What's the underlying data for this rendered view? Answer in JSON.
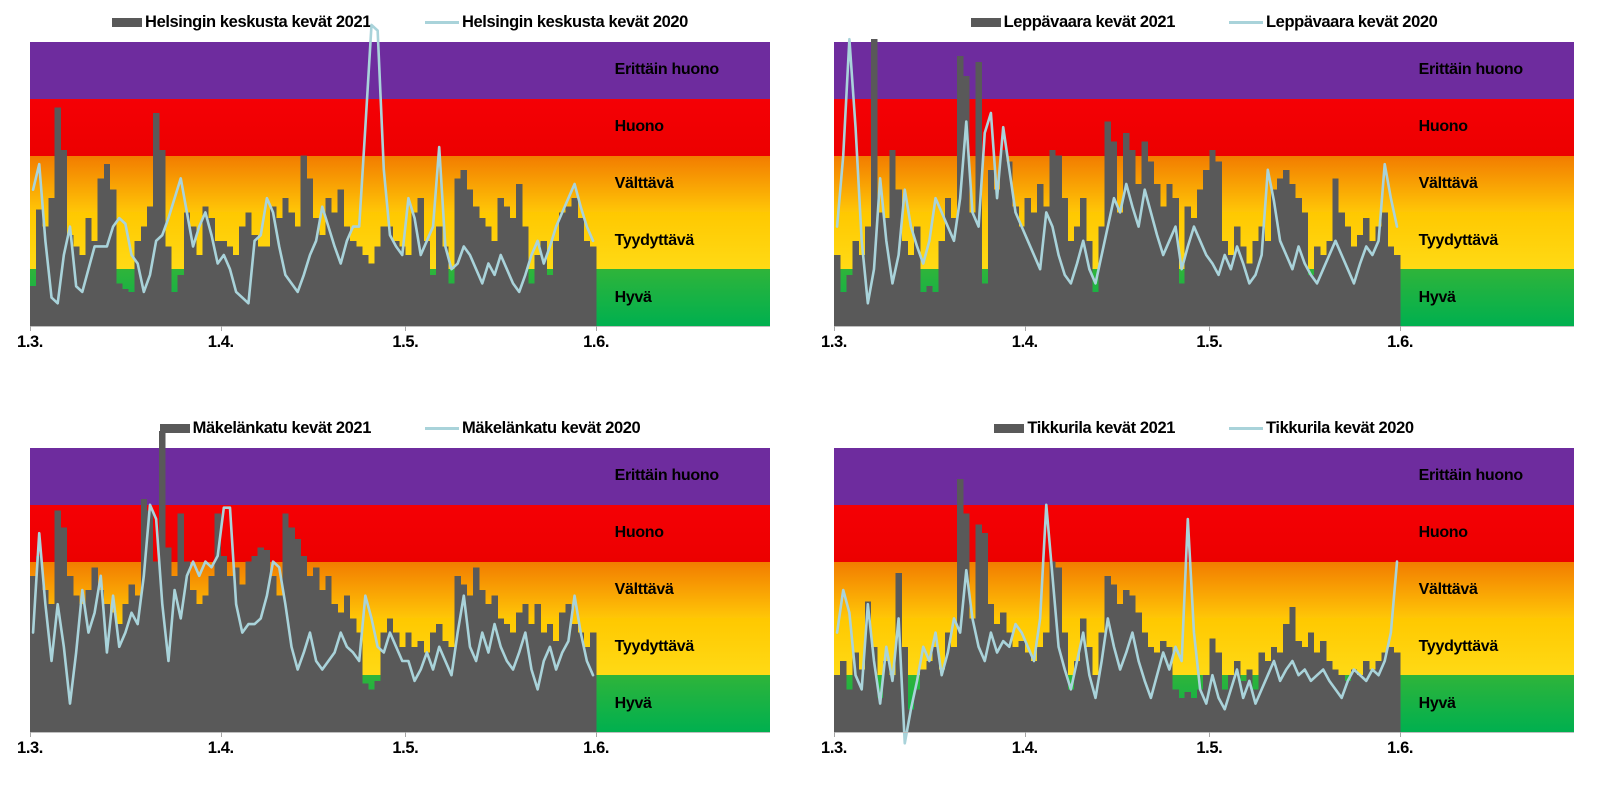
{
  "page": {
    "background": "#FFFFFF"
  },
  "colors": {
    "bar": "#595959",
    "line": "#A9D3DA",
    "axis_line": "#BFBFBF",
    "tick": "#A6A6A6",
    "text": "#000000"
  },
  "bands": [
    {
      "key": "erittain-huono",
      "label": "Erittäin huono",
      "color_top": "#6E2C9E",
      "color_bottom": "#6E2C9E"
    },
    {
      "key": "huono",
      "label": "Huono",
      "color_top": "#F50005",
      "color_bottom": "#EC0000"
    },
    {
      "key": "valttava",
      "label": "Välttävä",
      "color_top": "#F27C00",
      "color_bottom": "#FFC607"
    },
    {
      "key": "tyydyttava",
      "label": "Tyydyttävä",
      "color_top": "#FFC800",
      "color_bottom": "#FFDA15"
    },
    {
      "key": "hyva",
      "label": "Hyvä",
      "color_top": "#2FB43A",
      "color_bottom": "#00B04F"
    }
  ],
  "x_ticks": [
    {
      "label": "1.3.",
      "day": 0
    },
    {
      "label": "1.4.",
      "day": 31
    },
    {
      "label": "1.5.",
      "day": 61
    },
    {
      "label": "1.6.",
      "day": 92
    }
  ],
  "chart_data": [
    {
      "type": "bar",
      "location": "Helsingin keskusta",
      "x_range": "daily values 1.3.–31.5. (92 days), ticks at 1.3., 1.4., 1.5., 1.6.",
      "y_scale": "air quality index, 0–100; bands of 20: 0–20 Hyvä, 20–40 Tyydyttävä, 40–60 Välttävä, 60–80 Huono, 80–100 Erittäin huono",
      "legend_position": "top",
      "grid": false,
      "series": [
        {
          "name": "Helsingin keskusta kevät 2021",
          "type": "bar",
          "values": [
            14,
            41,
            35,
            45,
            77,
            62,
            32,
            28,
            25,
            38,
            30,
            52,
            57,
            48,
            15,
            13,
            12,
            30,
            35,
            42,
            75,
            62,
            28,
            12,
            18,
            40,
            35,
            25,
            42,
            38,
            30,
            30,
            28,
            25,
            35,
            40,
            32,
            28,
            28,
            42,
            38,
            45,
            40,
            35,
            60,
            52,
            38,
            32,
            45,
            40,
            48,
            35,
            30,
            28,
            25,
            22,
            28,
            35,
            35,
            30,
            28,
            25,
            40,
            45,
            30,
            18,
            35,
            28,
            15,
            52,
            55,
            48,
            42,
            38,
            35,
            30,
            45,
            42,
            38,
            50,
            35,
            15,
            25,
            30,
            18,
            30,
            40,
            42,
            45,
            38,
            30,
            28
          ]
        },
        {
          "name": "Helsingin keskusta kevät 2020",
          "type": "line",
          "values": [
            48,
            57,
            30,
            10,
            8,
            25,
            35,
            14,
            12,
            20,
            28,
            28,
            28,
            35,
            38,
            36,
            25,
            22,
            12,
            18,
            30,
            32,
            38,
            45,
            52,
            40,
            28,
            35,
            40,
            32,
            22,
            25,
            20,
            12,
            10,
            8,
            30,
            32,
            45,
            40,
            28,
            18,
            15,
            12,
            18,
            25,
            30,
            42,
            35,
            28,
            22,
            30,
            35,
            35,
            70,
            106,
            104,
            55,
            32,
            28,
            25,
            45,
            38,
            25,
            30,
            35,
            63,
            28,
            20,
            22,
            28,
            25,
            20,
            15,
            22,
            18,
            25,
            20,
            15,
            12,
            18,
            25,
            30,
            22,
            28,
            35,
            40,
            45,
            50,
            42,
            35,
            30
          ]
        }
      ]
    },
    {
      "type": "bar",
      "location": "Leppävaara",
      "x_range": "daily values 1.3.–31.5. (92 days), ticks at 1.3., 1.4., 1.5., 1.6.",
      "y_scale": "air quality index, 0–100; bands of 20: 0–20 Hyvä, 20–40 Tyydyttävä, 40–60 Välttävä, 60–80 Huono, 80–100 Erittäin huono",
      "legend_position": "top",
      "grid": false,
      "series": [
        {
          "name": "Leppävaara kevät 2021",
          "type": "bar",
          "values": [
            25,
            12,
            18,
            30,
            25,
            35,
            101,
            40,
            38,
            62,
            48,
            30,
            25,
            35,
            12,
            14,
            12,
            30,
            45,
            38,
            95,
            88,
            40,
            93,
            15,
            55,
            48,
            62,
            58,
            42,
            35,
            45,
            40,
            50,
            42,
            62,
            60,
            45,
            30,
            35,
            45,
            30,
            12,
            35,
            72,
            65,
            40,
            68,
            62,
            50,
            65,
            58,
            50,
            42,
            50,
            45,
            15,
            42,
            38,
            48,
            55,
            62,
            58,
            30,
            25,
            35,
            28,
            22,
            30,
            35,
            30,
            48,
            52,
            55,
            50,
            45,
            40,
            18,
            28,
            25,
            30,
            52,
            40,
            35,
            28,
            32,
            38,
            30,
            35,
            40,
            28,
            25
          ]
        },
        {
          "name": "Leppävaara kevät 2020",
          "type": "line",
          "values": [
            35,
            60,
            101,
            70,
            30,
            8,
            20,
            52,
            30,
            15,
            25,
            48,
            35,
            28,
            22,
            30,
            45,
            40,
            35,
            30,
            45,
            72,
            40,
            35,
            68,
            75,
            45,
            70,
            55,
            40,
            35,
            30,
            25,
            20,
            40,
            35,
            25,
            18,
            15,
            22,
            30,
            20,
            15,
            25,
            35,
            45,
            40,
            50,
            42,
            35,
            48,
            40,
            32,
            25,
            30,
            35,
            20,
            28,
            35,
            30,
            25,
            22,
            18,
            25,
            20,
            28,
            22,
            15,
            18,
            25,
            55,
            44,
            30,
            25,
            20,
            28,
            22,
            18,
            15,
            20,
            25,
            30,
            25,
            20,
            15,
            22,
            28,
            25,
            30,
            57,
            45,
            35
          ]
        }
      ]
    },
    {
      "type": "bar",
      "location": "Mäkelänkatu",
      "x_range": "daily values 1.3.–31.5. (92 days), ticks at 1.3., 1.4., 1.5., 1.6.",
      "y_scale": "air quality index, 0–100; bands of 20: 0–20 Hyvä, 20–40 Tyydyttävä, 40–60 Välttävä, 60–80 Huono, 80–100 Erittäin huono",
      "legend_position": "top",
      "grid": false,
      "series": [
        {
          "name": "Mäkelänkatu kevät 2021",
          "type": "bar",
          "values": [
            55,
            62,
            50,
            45,
            78,
            72,
            55,
            48,
            45,
            50,
            58,
            50,
            45,
            42,
            38,
            45,
            52,
            48,
            82,
            78,
            60,
            106,
            65,
            55,
            77,
            60,
            50,
            45,
            48,
            55,
            77,
            62,
            55,
            58,
            52,
            60,
            62,
            65,
            64,
            55,
            48,
            77,
            72,
            68,
            62,
            55,
            58,
            50,
            55,
            45,
            42,
            48,
            40,
            35,
            17,
            15,
            18,
            35,
            40,
            35,
            30,
            35,
            30,
            32,
            28,
            35,
            38,
            32,
            30,
            55,
            52,
            48,
            58,
            50,
            45,
            48,
            40,
            38,
            35,
            42,
            45,
            38,
            45,
            35,
            38,
            32,
            42,
            45,
            38,
            35,
            30,
            35
          ]
        },
        {
          "name": "Mäkelänkatu kevät 2020",
          "type": "line",
          "values": [
            35,
            70,
            45,
            25,
            45,
            30,
            10,
            28,
            50,
            35,
            42,
            55,
            28,
            48,
            30,
            35,
            42,
            38,
            55,
            80,
            75,
            45,
            25,
            50,
            40,
            55,
            60,
            55,
            60,
            58,
            62,
            79,
            79,
            45,
            35,
            38,
            38,
            40,
            48,
            60,
            58,
            45,
            30,
            22,
            28,
            35,
            25,
            22,
            25,
            28,
            35,
            30,
            28,
            25,
            48,
            40,
            30,
            28,
            35,
            30,
            25,
            25,
            18,
            22,
            28,
            22,
            30,
            25,
            20,
            35,
            48,
            30,
            25,
            35,
            28,
            38,
            30,
            25,
            22,
            28,
            35,
            22,
            15,
            25,
            30,
            22,
            28,
            32,
            48,
            35,
            25,
            20
          ]
        }
      ]
    },
    {
      "type": "bar",
      "location": "Tikkurila",
      "x_range": "daily values 1.3.–31.5. (92 days), ticks at 1.3., 1.4., 1.5., 1.6.",
      "y_scale": "air quality index, 0–100; bands of 20: 0–20 Hyvä, 20–40 Tyydyttävä, 40–60 Välttävä, 60–80 Huono, 80–100 Erittäin huono",
      "legend_position": "top",
      "grid": false,
      "series": [
        {
          "name": "Tikkurila kevät 2021",
          "type": "bar",
          "values": [
            20,
            25,
            15,
            28,
            22,
            46,
            30,
            12,
            25,
            20,
            56,
            30,
            8,
            15,
            22,
            25,
            30,
            22,
            35,
            30,
            89,
            77,
            40,
            73,
            70,
            45,
            38,
            42,
            35,
            30,
            32,
            28,
            25,
            30,
            35,
            60,
            58,
            35,
            15,
            25,
            40,
            30,
            20,
            35,
            55,
            52,
            45,
            50,
            48,
            42,
            35,
            30,
            28,
            32,
            30,
            15,
            12,
            14,
            12,
            15,
            20,
            33,
            28,
            15,
            20,
            25,
            18,
            22,
            15,
            28,
            25,
            30,
            28,
            38,
            44,
            32,
            30,
            35,
            28,
            32,
            25,
            22,
            20,
            18,
            22,
            20,
            25,
            22,
            25,
            28,
            30,
            28
          ]
        },
        {
          "name": "Tikkurila kevät 2020",
          "type": "line",
          "values": [
            35,
            50,
            42,
            20,
            15,
            45,
            25,
            10,
            30,
            18,
            40,
            -4,
            8,
            18,
            30,
            25,
            35,
            20,
            28,
            40,
            35,
            57,
            40,
            30,
            25,
            35,
            28,
            32,
            30,
            38,
            35,
            30,
            25,
            40,
            80,
            55,
            30,
            22,
            15,
            25,
            35,
            20,
            12,
            25,
            40,
            30,
            22,
            28,
            35,
            25,
            18,
            12,
            20,
            28,
            22,
            30,
            25,
            75,
            35,
            15,
            10,
            20,
            12,
            8,
            15,
            22,
            12,
            18,
            10,
            15,
            20,
            25,
            18,
            22,
            25,
            20,
            22,
            18,
            20,
            22,
            18,
            15,
            12,
            18,
            22,
            20,
            18,
            22,
            20,
            25,
            35,
            60
          ]
        }
      ]
    }
  ]
}
